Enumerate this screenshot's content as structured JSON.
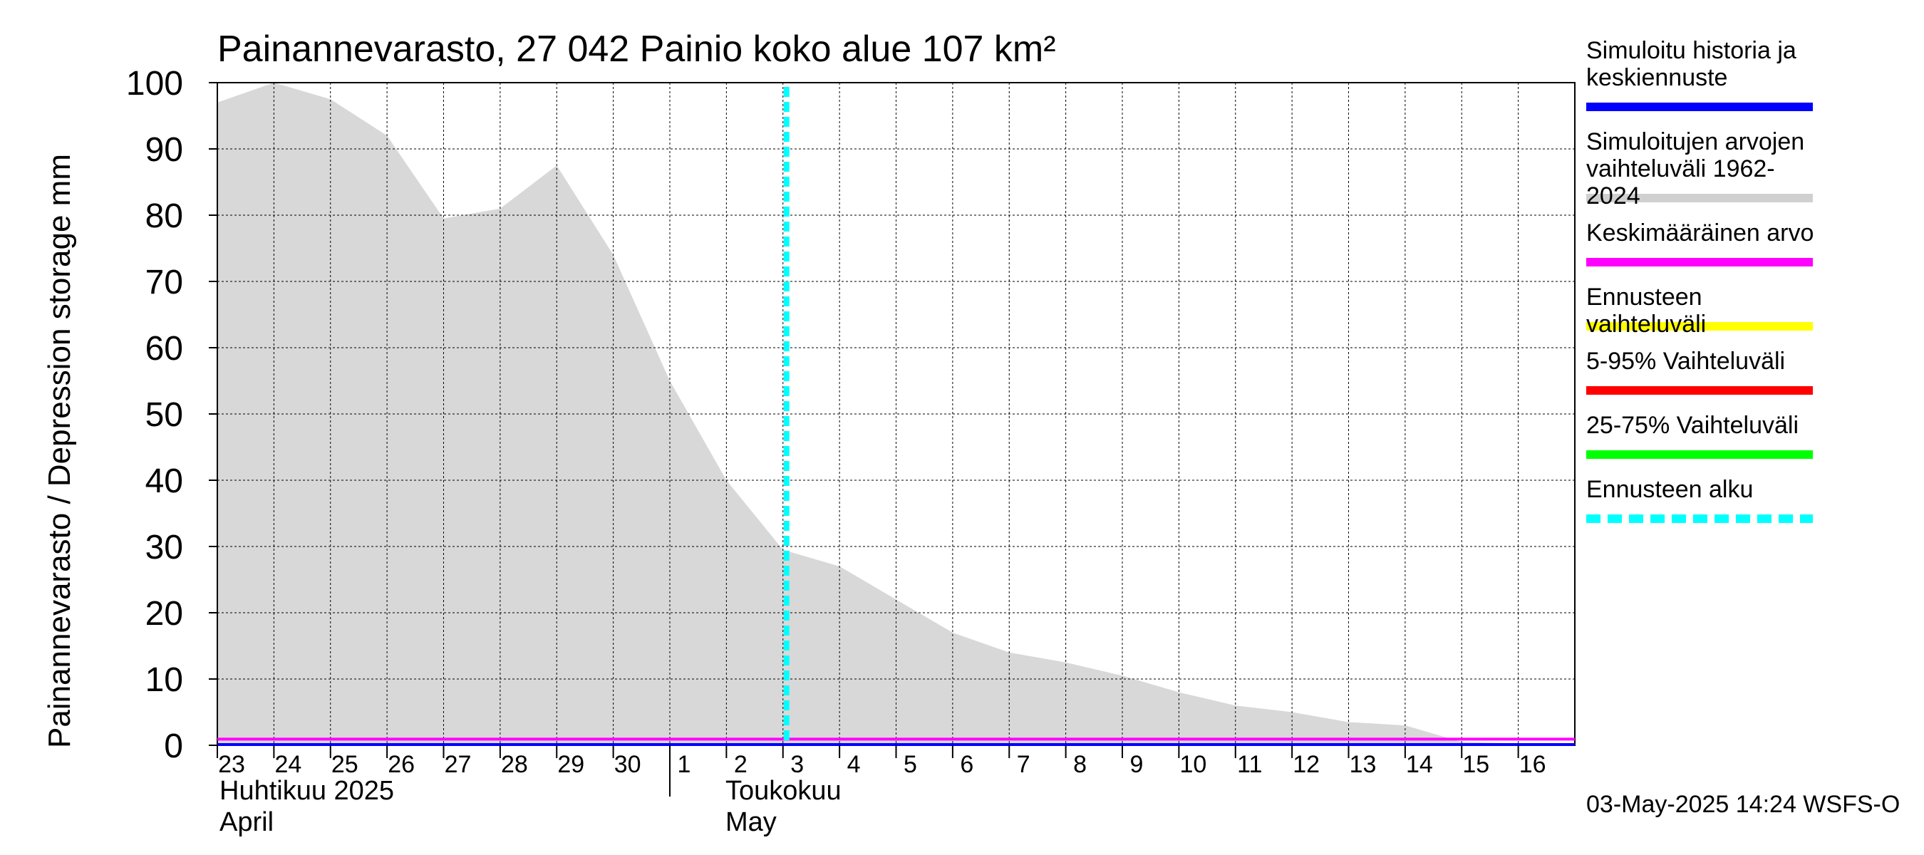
{
  "chart_data": {
    "type": "area",
    "title": "Painannevarasto, 27 042 Painio koko alue 107 km²",
    "ylabel": "Painannevarasto / Depression storage    mm",
    "ylim": [
      0,
      100
    ],
    "yticks": [
      "0",
      "10",
      "20",
      "30",
      "40",
      "50",
      "60",
      "70",
      "80",
      "90",
      "100"
    ],
    "x_tick_labels": [
      "23",
      "24",
      "25",
      "26",
      "27",
      "28",
      "29",
      "30",
      "1",
      "2",
      "3",
      "4",
      "5",
      "6",
      "7",
      "8",
      "9",
      "10",
      "11",
      "12",
      "13",
      "14",
      "15",
      "16"
    ],
    "month_labels": {
      "april_fi": "Huhtikuu  2025",
      "april_en": "April",
      "may_fi": "Toukokuu",
      "may_en": "May"
    },
    "x_start": "2025-04-23",
    "x_end": "2025-05-17",
    "forecast_start": "2025-05-03",
    "range_band": [
      [
        "2025-04-23",
        97
      ],
      [
        "2025-04-24",
        100
      ],
      [
        "2025-04-25",
        97.5
      ],
      [
        "2025-04-26",
        92
      ],
      [
        "2025-04-27",
        79.5
      ],
      [
        "2025-04-28",
        81
      ],
      [
        "2025-04-29",
        87.5
      ],
      [
        "2025-04-30",
        74
      ],
      [
        "2025-05-01",
        55
      ],
      [
        "2025-05-02",
        40
      ],
      [
        "2025-05-03",
        29.5
      ],
      [
        "2025-05-04",
        27
      ],
      [
        "2025-05-05",
        22
      ],
      [
        "2025-05-06",
        17
      ],
      [
        "2025-05-07",
        14
      ],
      [
        "2025-05-08",
        12.5
      ],
      [
        "2025-05-09",
        10.5
      ],
      [
        "2025-05-10",
        8
      ],
      [
        "2025-05-11",
        6
      ],
      [
        "2025-05-12",
        5
      ],
      [
        "2025-05-13",
        3.5
      ],
      [
        "2025-05-14",
        3
      ],
      [
        "2025-05-15",
        0.5
      ],
      [
        "2025-05-16",
        0.3
      ],
      [
        "2025-05-17",
        0.3
      ]
    ],
    "series": [
      {
        "name": "Simuloitu historia ja keskiennuste",
        "color": "#0000ff",
        "values": [
          0,
          0
        ]
      },
      {
        "name": "Keskimääräinen arvo",
        "color": "#ff00ff",
        "values": [
          0.5,
          0.5
        ]
      }
    ],
    "colors": {
      "range_fill": "#d8d8d8",
      "history": "#0000ff",
      "mean": "#ff00ff",
      "forecast_range": "#ffff00",
      "p5_95": "#ff0000",
      "p25_75": "#00ff00",
      "forecast_start": "#00ffff",
      "grid": "#000000"
    },
    "grid": true,
    "legend_placement": "right"
  },
  "legend": [
    {
      "label": "Simuloitu historia ja keskiennuste",
      "color": "#0000ff",
      "style": "solid"
    },
    {
      "label": "Simuloitujen arvojen vaihteluväli 1962-2024",
      "color": "#d0d0d0",
      "style": "solid"
    },
    {
      "label": "Keskimääräinen arvo",
      "color": "#ff00ff",
      "style": "solid"
    },
    {
      "label": "Ennusteen vaihteluväli",
      "color": "#ffff00",
      "style": "solid"
    },
    {
      "label": "5-95% Vaihteluväli",
      "color": "#ff0000",
      "style": "solid"
    },
    {
      "label": "25-75% Vaihteluväli",
      "color": "#00ff00",
      "style": "solid"
    },
    {
      "label": "Ennusteen alku",
      "color": "#00ffff",
      "style": "dashed"
    }
  ],
  "footer": {
    "timestamp": "03-May-2025 14:24 WSFS-O"
  }
}
